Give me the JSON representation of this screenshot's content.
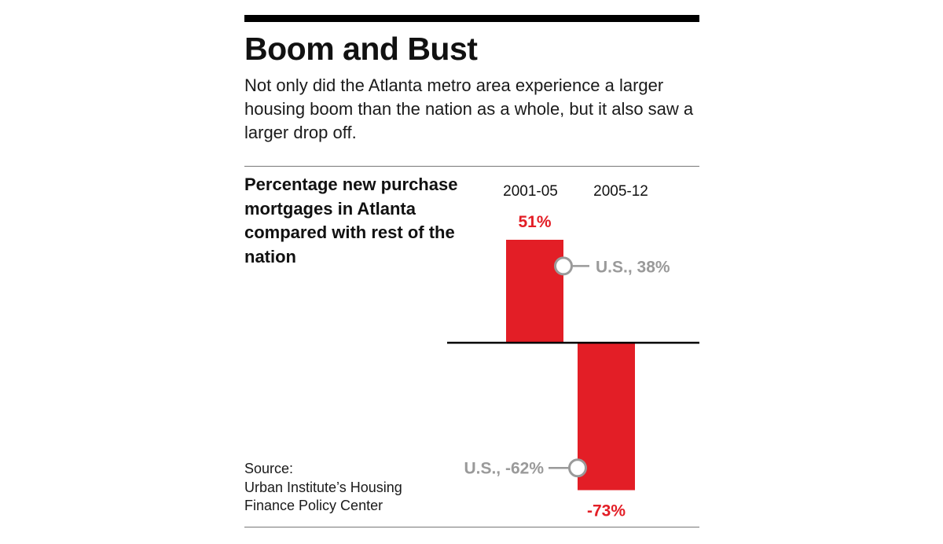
{
  "title": "Boom and Bust",
  "subtitle": "Not only did the Atlanta metro area experience a larger housing boom than the nation as a whole, but it also saw a larger drop off.",
  "chart_heading": "Percentage new purchase mortgages in Atlanta compared with rest of the nation",
  "source": {
    "label": "Source:",
    "lines": [
      "Urban Institute’s Housing",
      "Finance Policy Center"
    ]
  },
  "colors": {
    "bar": "#e31e26",
    "us_marker": "#9a9a9a",
    "axis": "#000000"
  },
  "chart_data": {
    "type": "bar",
    "categories": [
      "2001-05",
      "2005-12"
    ],
    "values": [
      51,
      -73
    ],
    "value_labels": [
      "51%",
      "-73%"
    ],
    "us_values": [
      38,
      -62
    ],
    "us_labels": [
      "U.S., 38%",
      "U.S., -62%"
    ],
    "ylim": [
      -73,
      51
    ],
    "grid": false
  }
}
